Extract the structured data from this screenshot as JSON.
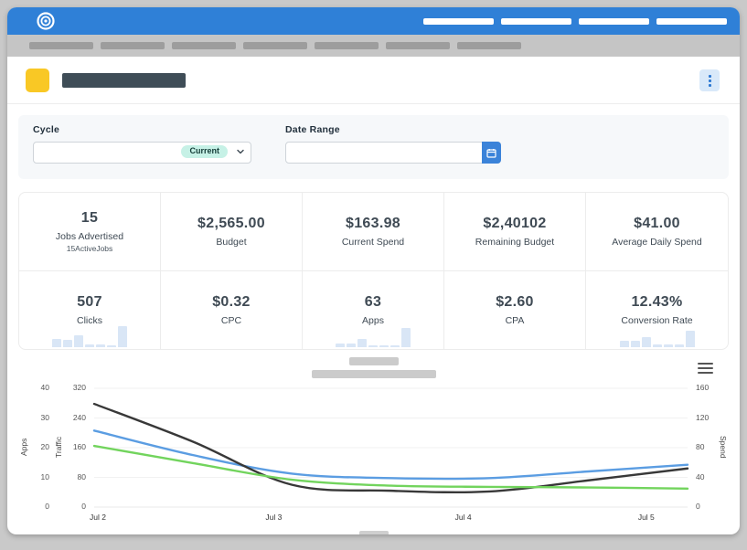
{
  "brand": {
    "topbar_color": "#2f80d7",
    "logo": "spiral-target-logo"
  },
  "header": {
    "accent_color": "#f9c825",
    "menu_icon": "kebab-icon"
  },
  "filters": {
    "cycle_label": "Cycle",
    "cycle_value_badge": "Current",
    "date_range_label": "Date Range",
    "calendar_icon": "calendar-icon",
    "calendar_button_color": "#3b83d9",
    "badge_color": "#c6f1e6"
  },
  "stats": {
    "rows": [
      [
        {
          "value": "15",
          "label": "Jobs Advertised",
          "sublabel": "15ActiveJobs"
        },
        {
          "value": "$2,565.00",
          "label": "Budget"
        },
        {
          "value": "$163.98",
          "label": "Current Spend"
        },
        {
          "value": "$2,40102",
          "label": "Remaining Budget"
        },
        {
          "value": "$41.00",
          "label": "Average Daily Spend"
        }
      ],
      [
        {
          "value": "507",
          "label": "Clicks",
          "spark": [
            9,
            8,
            13,
            3,
            3,
            2,
            23
          ]
        },
        {
          "value": "$0.32",
          "label": "CPC"
        },
        {
          "value": "63",
          "label": "Apps",
          "spark": [
            4,
            4,
            9,
            2,
            2,
            2,
            21
          ]
        },
        {
          "value": "$2.60",
          "label": "CPA"
        },
        {
          "value": "12.43%",
          "label": "Conversion Rate",
          "spark": [
            7,
            7,
            11,
            3,
            3,
            3,
            18
          ]
        }
      ]
    ],
    "spark_color": "#d9e6f6"
  },
  "chart_data": {
    "type": "line",
    "x": [
      "Jul 2",
      "Jul 3",
      "Jul 4",
      "Jul 5"
    ],
    "points_per_interval": 2,
    "grid": true,
    "legend_position": "bottom",
    "axes": {
      "apps": {
        "label": "Apps",
        "side": "left",
        "range": [
          0,
          40
        ],
        "ticks": [
          0,
          10,
          20,
          30,
          40
        ]
      },
      "traffic": {
        "label": "Traffic",
        "side": "left",
        "range": [
          0,
          320
        ],
        "ticks": [
          0,
          80,
          160,
          240,
          320
        ]
      },
      "spend": {
        "label": "Spend",
        "side": "right",
        "range": [
          0,
          160
        ],
        "ticks": [
          0,
          40,
          80,
          120,
          160
        ]
      }
    },
    "series": [
      {
        "name": "traffic-line",
        "axis": "traffic",
        "color": "#5b9de2",
        "values": [
          206,
          140,
          90,
          78,
          78,
          96,
          114
        ]
      },
      {
        "name": "spend-line",
        "axis": "spend",
        "color": "#383838",
        "values": [
          139,
          88,
          30,
          22,
          21,
          36,
          52
        ]
      },
      {
        "name": "apps-line",
        "axis": "apps",
        "color": "#72d45d",
        "values": [
          20.6,
          14.8,
          9.2,
          7.2,
          6.8,
          6.6,
          6.2
        ]
      }
    ]
  }
}
